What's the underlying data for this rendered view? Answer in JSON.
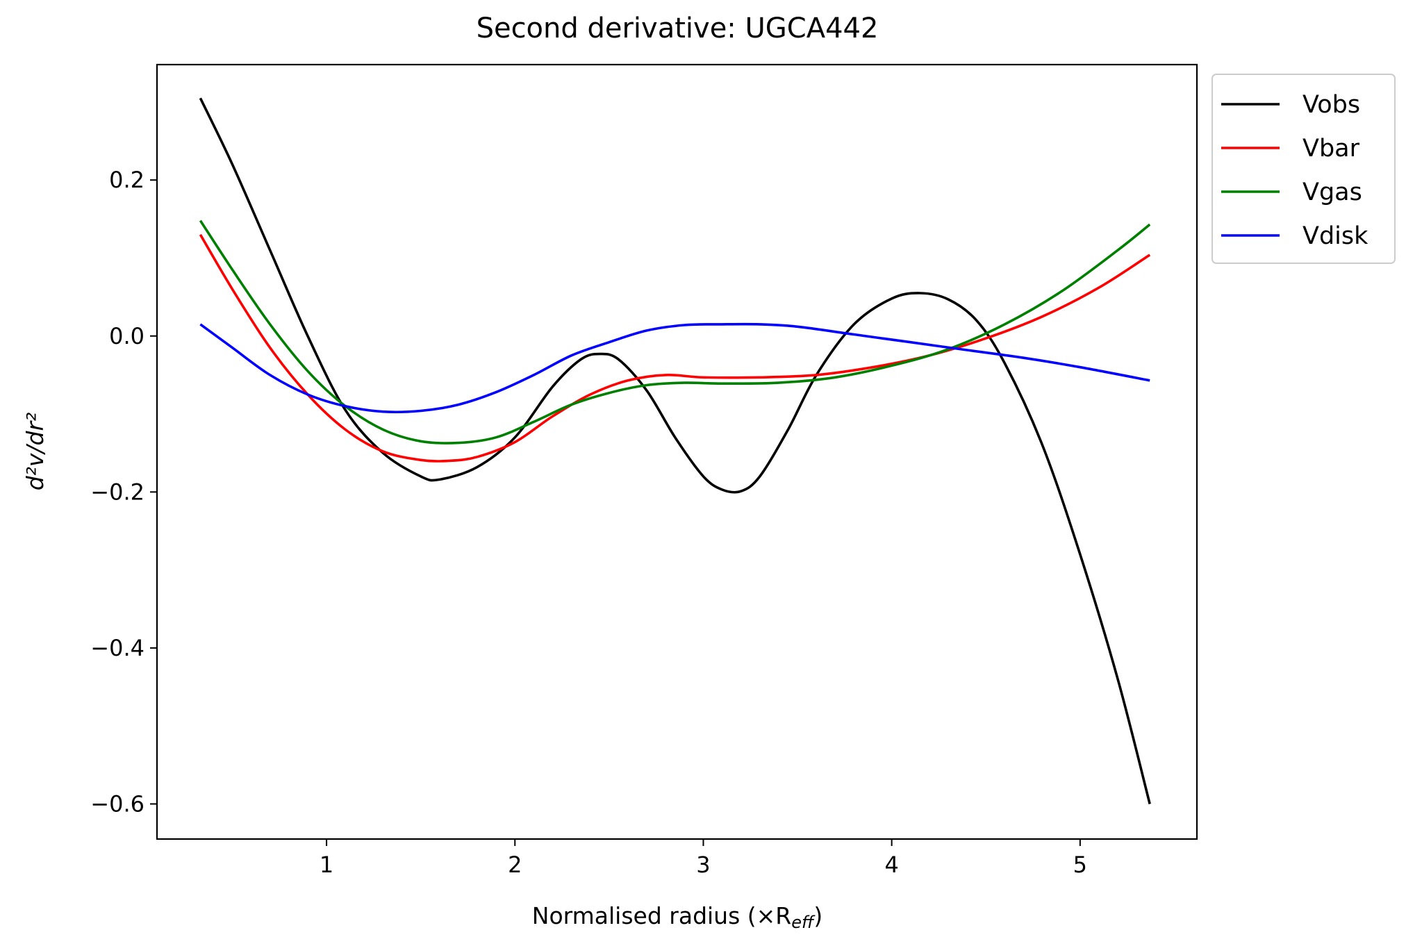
{
  "chart_data": {
    "type": "line",
    "title": "Second derivative: UGCA442",
    "xlabel": "Normalised radius (×R",
    "xlabel_sub": "eff",
    "xlabel_close": ")",
    "ylabel": "d²v/dr²",
    "xlim": [
      0.1,
      5.62
    ],
    "ylim": [
      -0.645,
      0.348
    ],
    "xticks": [
      1,
      2,
      3,
      4,
      5
    ],
    "yticks": [
      0.2,
      0.0,
      -0.2,
      -0.4,
      -0.6
    ],
    "xtick_labels": [
      "1",
      "2",
      "3",
      "4",
      "5"
    ],
    "ytick_labels": [
      "0.2",
      "0.0",
      "−0.2",
      "−0.4",
      "−0.6"
    ],
    "grid": false,
    "legend_position": "outside-top-right",
    "series": [
      {
        "name": "Vobs",
        "color": "#000000",
        "x": [
          0.33,
          0.5,
          0.7,
          0.9,
          1.1,
          1.3,
          1.5,
          1.6,
          1.8,
          2.0,
          2.2,
          2.35,
          2.45,
          2.55,
          2.7,
          2.85,
          3.0,
          3.1,
          3.2,
          3.3,
          3.45,
          3.6,
          3.8,
          4.0,
          4.15,
          4.3,
          4.45,
          4.6,
          4.8,
          5.0,
          5.2,
          5.37
        ],
        "y": [
          0.305,
          0.22,
          0.11,
          0.0,
          -0.095,
          -0.15,
          -0.18,
          -0.184,
          -0.168,
          -0.13,
          -0.065,
          -0.03,
          -0.023,
          -0.03,
          -0.07,
          -0.13,
          -0.18,
          -0.197,
          -0.199,
          -0.18,
          -0.12,
          -0.05,
          0.015,
          0.048,
          0.055,
          0.047,
          0.02,
          -0.035,
          -0.14,
          -0.28,
          -0.44,
          -0.6
        ]
      },
      {
        "name": "Vbar",
        "color": "#ff0000",
        "x": [
          0.33,
          0.5,
          0.7,
          0.9,
          1.1,
          1.3,
          1.5,
          1.65,
          1.8,
          2.0,
          2.2,
          2.4,
          2.6,
          2.8,
          3.0,
          3.3,
          3.6,
          3.9,
          4.2,
          4.5,
          4.8,
          5.1,
          5.37
        ],
        "y": [
          0.13,
          0.06,
          -0.015,
          -0.075,
          -0.12,
          -0.148,
          -0.159,
          -0.16,
          -0.155,
          -0.136,
          -0.103,
          -0.075,
          -0.057,
          -0.05,
          -0.053,
          -0.053,
          -0.05,
          -0.04,
          -0.025,
          -0.003,
          0.025,
          0.062,
          0.104
        ]
      },
      {
        "name": "Vgas",
        "color": "#008000",
        "x": [
          0.33,
          0.5,
          0.7,
          0.9,
          1.1,
          1.3,
          1.5,
          1.7,
          1.9,
          2.1,
          2.3,
          2.5,
          2.7,
          2.9,
          3.1,
          3.4,
          3.7,
          4.0,
          4.3,
          4.6,
          4.9,
          5.2,
          5.37
        ],
        "y": [
          0.148,
          0.085,
          0.015,
          -0.045,
          -0.09,
          -0.12,
          -0.135,
          -0.137,
          -0.13,
          -0.11,
          -0.088,
          -0.073,
          -0.063,
          -0.06,
          -0.061,
          -0.06,
          -0.053,
          -0.038,
          -0.017,
          0.015,
          0.057,
          0.11,
          0.143
        ]
      },
      {
        "name": "Vdisk",
        "color": "#0000ff",
        "x": [
          0.33,
          0.5,
          0.7,
          0.9,
          1.1,
          1.3,
          1.5,
          1.7,
          1.9,
          2.1,
          2.3,
          2.5,
          2.7,
          2.9,
          3.1,
          3.3,
          3.5,
          3.8,
          4.1,
          4.4,
          4.7,
          5.0,
          5.37
        ],
        "y": [
          0.015,
          -0.015,
          -0.05,
          -0.075,
          -0.09,
          -0.097,
          -0.096,
          -0.088,
          -0.072,
          -0.05,
          -0.025,
          -0.008,
          0.007,
          0.014,
          0.015,
          0.015,
          0.012,
          0.002,
          -0.008,
          -0.018,
          -0.028,
          -0.04,
          -0.057
        ]
      }
    ]
  }
}
